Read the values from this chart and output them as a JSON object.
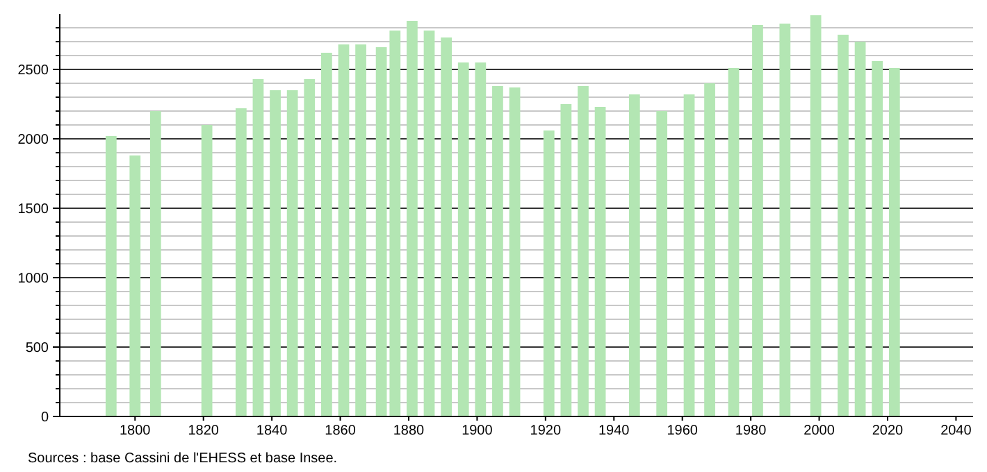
{
  "chart_data": {
    "type": "bar",
    "color": "#b3e6b3",
    "x": [
      1793,
      1800,
      1806,
      1821,
      1831,
      1836,
      1841,
      1846,
      1851,
      1856,
      1861,
      1866,
      1872,
      1876,
      1881,
      1886,
      1891,
      1896,
      1901,
      1906,
      1911,
      1921,
      1926,
      1931,
      1936,
      1946,
      1954,
      1962,
      1968,
      1975,
      1982,
      1990,
      1999,
      2007,
      2012,
      2017,
      2022
    ],
    "values": [
      2020,
      1880,
      2200,
      2100,
      2220,
      2430,
      2350,
      2350,
      2430,
      2620,
      2680,
      2680,
      2660,
      2780,
      2850,
      2780,
      2730,
      2550,
      2550,
      2380,
      2370,
      2060,
      2250,
      2380,
      2230,
      2320,
      2200,
      2320,
      2400,
      2510,
      2820,
      2830,
      2890,
      2750,
      2700,
      2560,
      2510
    ],
    "xlim": [
      1778,
      2045
    ],
    "xticks": [
      1800,
      1820,
      1840,
      1860,
      1880,
      1900,
      1920,
      1940,
      1960,
      1980,
      2000,
      2020,
      2040
    ],
    "ylim": [
      0,
      2900
    ],
    "yticks": [
      0,
      {
        "value": 100,
        "label": null
      },
      {
        "value": 200,
        "label": null
      },
      {
        "value": 300,
        "label": null
      },
      {
        "value": 400,
        "label": null
      },
      500,
      {
        "value": 600,
        "label": null
      },
      {
        "value": 700,
        "label": null
      },
      {
        "value": 800,
        "label": null
      },
      {
        "value": 900,
        "label": null
      },
      1000,
      {
        "value": 1100,
        "label": null
      },
      {
        "value": 1200,
        "label": null
      },
      {
        "value": 1300,
        "label": null
      },
      {
        "value": 1400,
        "label": null
      },
      1500,
      {
        "value": 1600,
        "label": null
      },
      {
        "value": 1700,
        "label": null
      },
      {
        "value": 1800,
        "label": null
      },
      {
        "value": 1900,
        "label": null
      },
      2000,
      {
        "value": 2100,
        "label": null
      },
      {
        "value": 2200,
        "label": null
      },
      {
        "value": 2300,
        "label": null
      },
      {
        "value": 2400,
        "label": null
      },
      2500,
      {
        "value": 2600,
        "label": null
      },
      {
        "value": 2700,
        "label": null
      },
      {
        "value": 2800,
        "label": null
      }
    ],
    "grid": "y",
    "annotations": [
      "Sources : base Cassini de l'EHESS et base Insee."
    ]
  }
}
